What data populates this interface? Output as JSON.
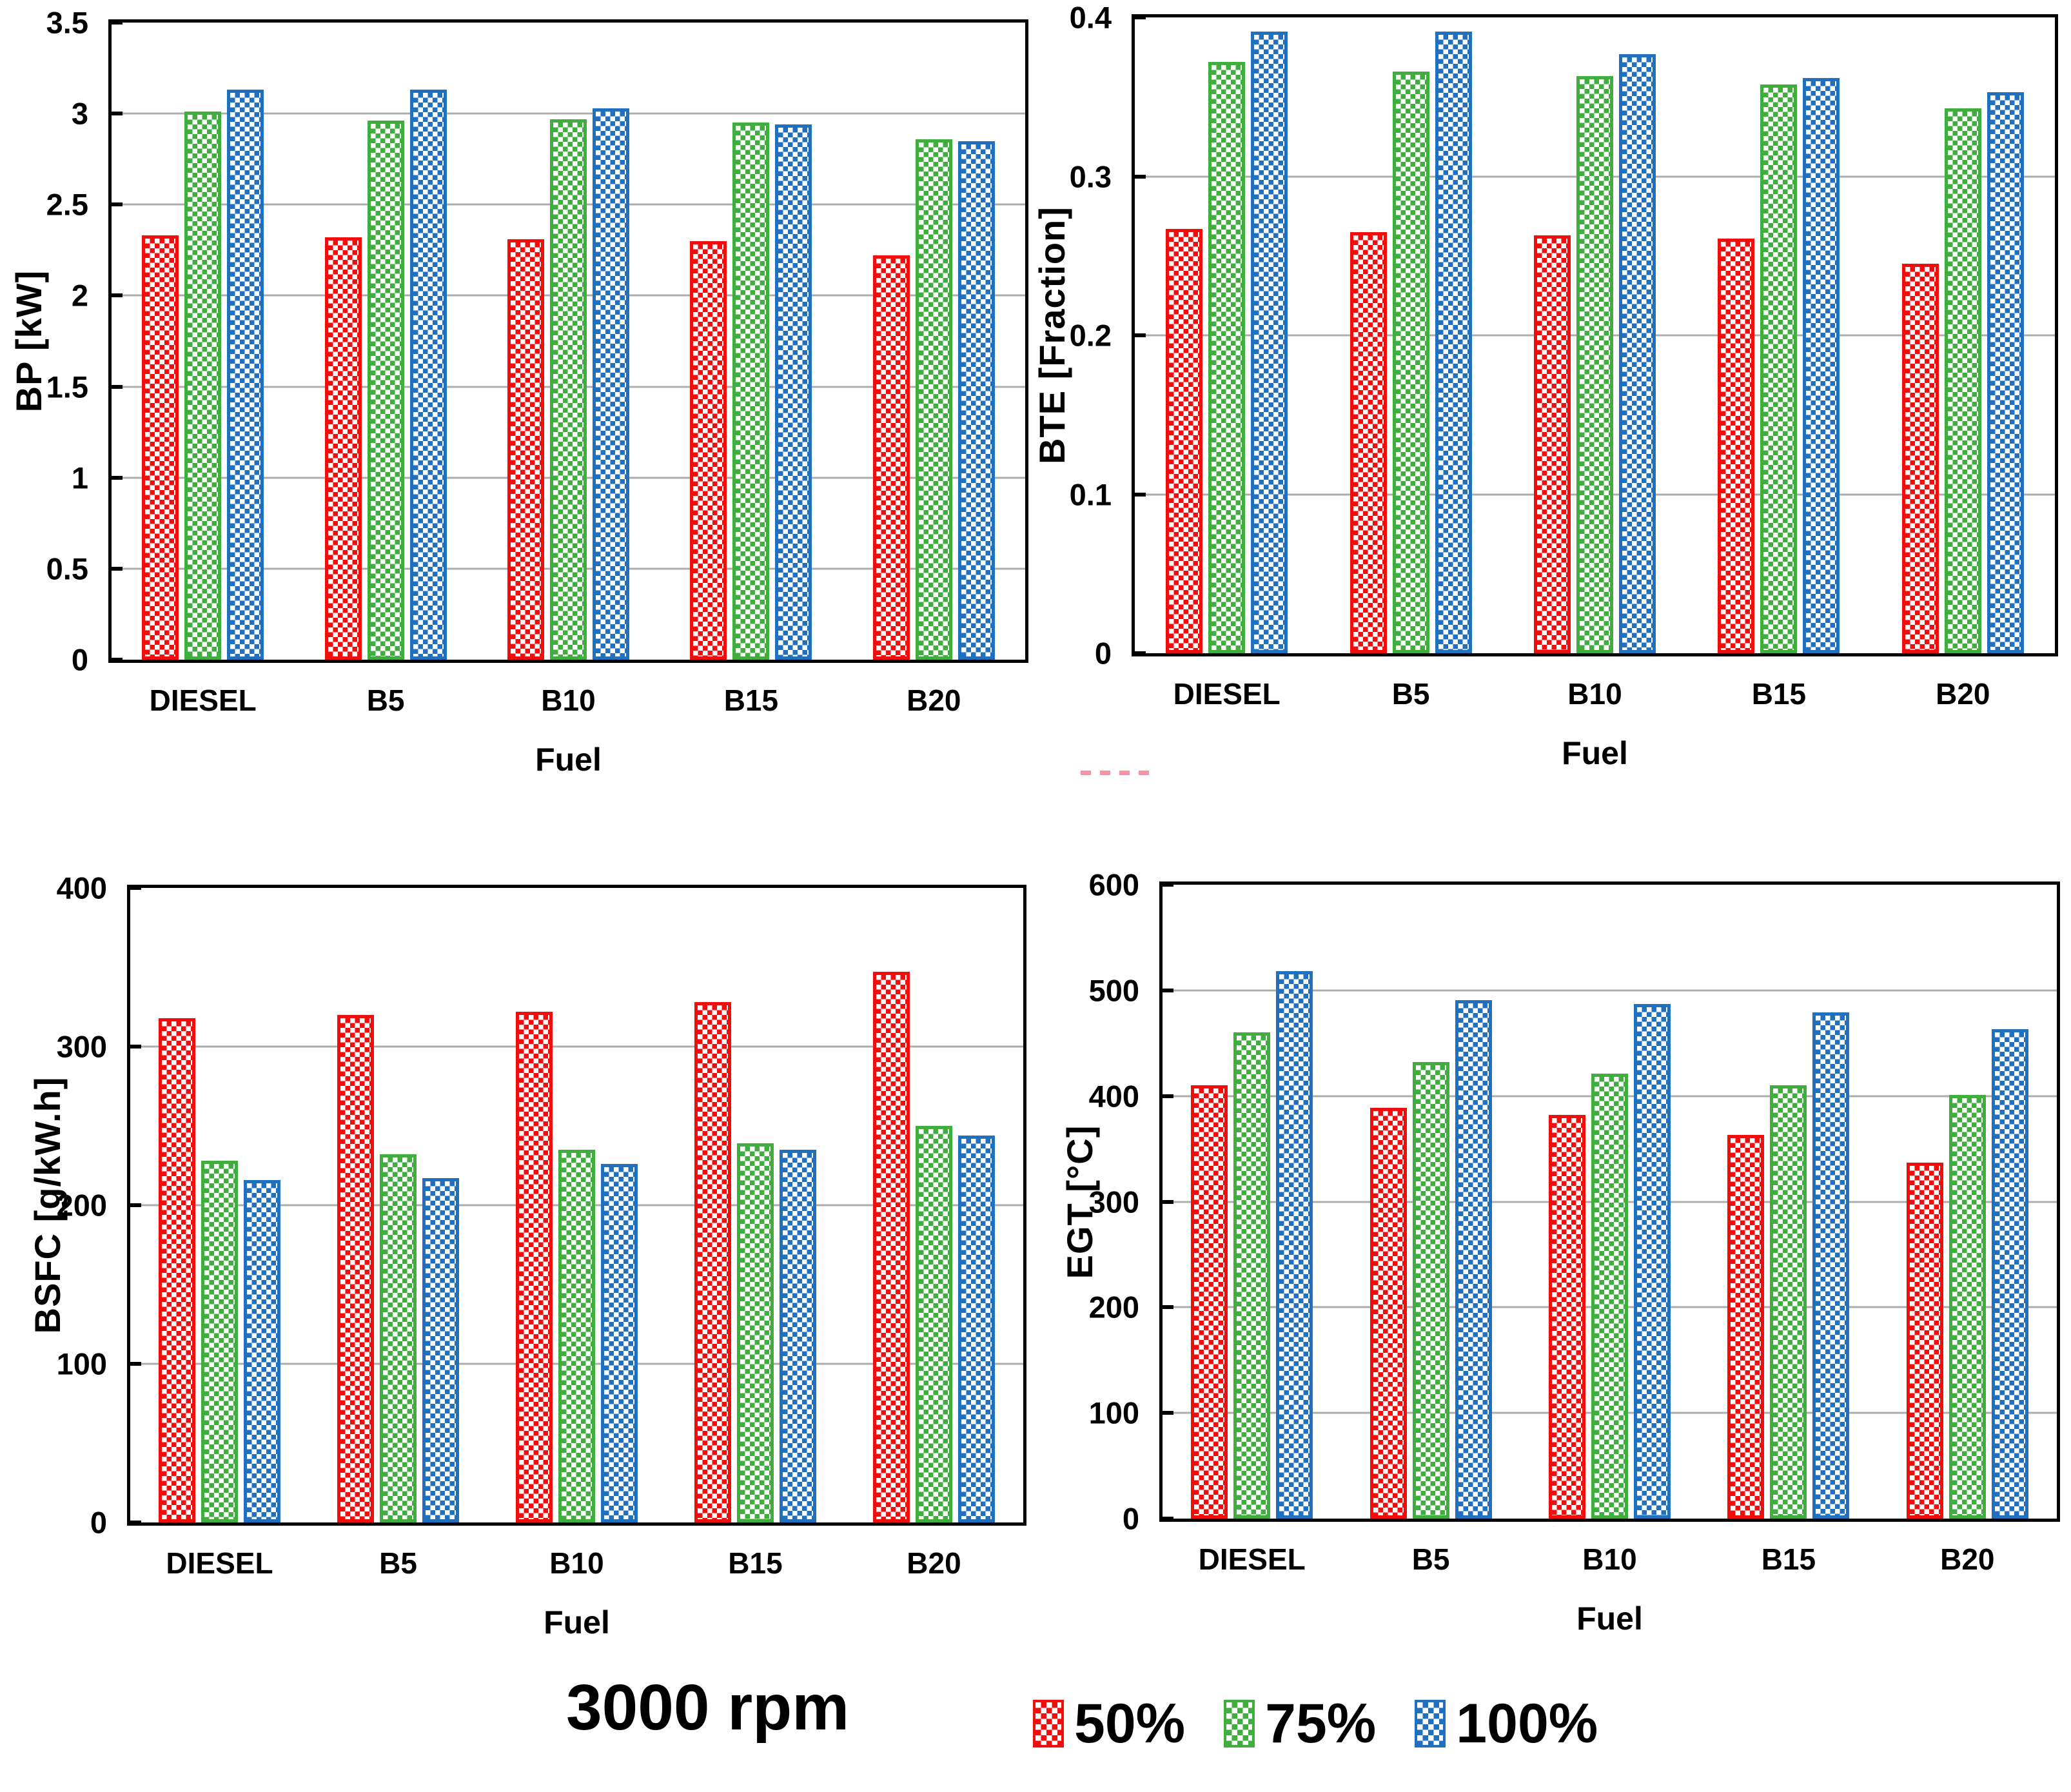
{
  "figure": {
    "rpm_label": "3000 rpm"
  },
  "legend": {
    "position": "bottom-right",
    "items": [
      {
        "label": "50%",
        "color": "#F20D0D",
        "pattern": "checkerboard"
      },
      {
        "label": "75%",
        "color": "#3FAE3F",
        "pattern": "checkerboard"
      },
      {
        "label": "100%",
        "color": "#2170BD",
        "pattern": "checkerboard"
      }
    ]
  },
  "decorations": {
    "stray_dashes_color": "#FB90A0"
  },
  "chart_data": [
    {
      "type": "bar",
      "ylabel": "BP [kW]",
      "xlabel": "Fuel",
      "categories": [
        "DIESEL",
        "B5",
        "B10",
        "B15",
        "B20"
      ],
      "ylim": [
        0,
        3.5
      ],
      "ytick_labels": [
        "0",
        "0.5",
        "1",
        "1.5",
        "2",
        "2.5",
        "3",
        "3.5"
      ],
      "grid": true,
      "series": [
        {
          "name": "50%",
          "values": [
            2.33,
            2.32,
            2.31,
            2.3,
            2.22
          ]
        },
        {
          "name": "75%",
          "values": [
            3.01,
            2.96,
            2.97,
            2.95,
            2.86
          ]
        },
        {
          "name": "100%",
          "values": [
            3.13,
            3.13,
            3.03,
            2.94,
            2.85
          ]
        }
      ]
    },
    {
      "type": "bar",
      "ylabel": "BTE [Fraction]",
      "xlabel": "Fuel",
      "categories": [
        "DIESEL",
        "B5",
        "B10",
        "B15",
        "B20"
      ],
      "ylim": [
        0,
        0.4
      ],
      "ytick_labels": [
        "0",
        "0.1",
        "0.2",
        "0.3",
        "0.4"
      ],
      "grid": true,
      "series": [
        {
          "name": "50%",
          "values": [
            0.267,
            0.265,
            0.263,
            0.261,
            0.245
          ]
        },
        {
          "name": "75%",
          "values": [
            0.372,
            0.366,
            0.363,
            0.358,
            0.343
          ]
        },
        {
          "name": "100%",
          "values": [
            0.391,
            0.391,
            0.377,
            0.362,
            0.353
          ]
        }
      ]
    },
    {
      "type": "bar",
      "ylabel": "BSFC [g/kW.h]",
      "xlabel": "Fuel",
      "categories": [
        "DIESEL",
        "B5",
        "B10",
        "B15",
        "B20"
      ],
      "ylim": [
        0,
        400
      ],
      "ytick_labels": [
        "0",
        "100",
        "200",
        "300",
        "400"
      ],
      "grid": true,
      "series": [
        {
          "name": "50%",
          "values": [
            318,
            320,
            322,
            328,
            347
          ]
        },
        {
          "name": "75%",
          "values": [
            228,
            232,
            235,
            239,
            250
          ]
        },
        {
          "name": "100%",
          "values": [
            216,
            217,
            226,
            235,
            244
          ]
        }
      ]
    },
    {
      "type": "bar",
      "ylabel": "EGT [°C]",
      "xlabel": "Fuel",
      "categories": [
        "DIESEL",
        "B5",
        "B10",
        "B15",
        "B20"
      ],
      "ylim": [
        0,
        600
      ],
      "ytick_labels": [
        "0",
        "100",
        "200",
        "300",
        "400",
        "500",
        "600"
      ],
      "grid": true,
      "series": [
        {
          "name": "50%",
          "values": [
            410,
            389,
            382,
            363,
            337
          ]
        },
        {
          "name": "75%",
          "values": [
            460,
            432,
            421,
            410,
            401
          ]
        },
        {
          "name": "100%",
          "values": [
            518,
            491,
            487,
            479,
            463
          ]
        }
      ]
    }
  ]
}
